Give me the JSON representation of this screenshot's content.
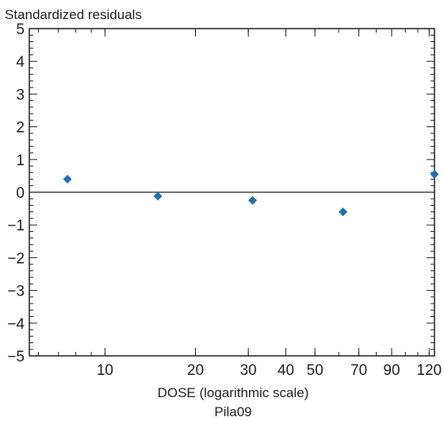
{
  "chart_data": {
    "type": "scatter",
    "title": "Pila09",
    "ylabel": "Standardized residuals",
    "xlabel": "DOSE (logarithmic scale)",
    "x_scale": "log",
    "xlim": [
      5.6,
      125
    ],
    "ylim": [
      -5,
      5
    ],
    "x_ticks": [
      10,
      20,
      30,
      40,
      50,
      70,
      90,
      120
    ],
    "y_ticks": [
      5,
      4,
      3,
      2,
      1,
      0,
      -1,
      -2,
      -3,
      -4,
      -5
    ],
    "y_tick_labels": [
      "5",
      "4",
      "3",
      "2",
      "1",
      "0",
      "−1",
      "−2",
      "−3",
      "−4",
      "−5"
    ],
    "reference_line_y": 0,
    "grid": false,
    "marker": "diamond",
    "marker_color": "#1f6fb2",
    "points": [
      {
        "x": 7.5,
        "y": 0.4
      },
      {
        "x": 15,
        "y": -0.12
      },
      {
        "x": 31,
        "y": -0.25
      },
      {
        "x": 62,
        "y": -0.6
      },
      {
        "x": 125,
        "y": 0.55
      }
    ]
  }
}
